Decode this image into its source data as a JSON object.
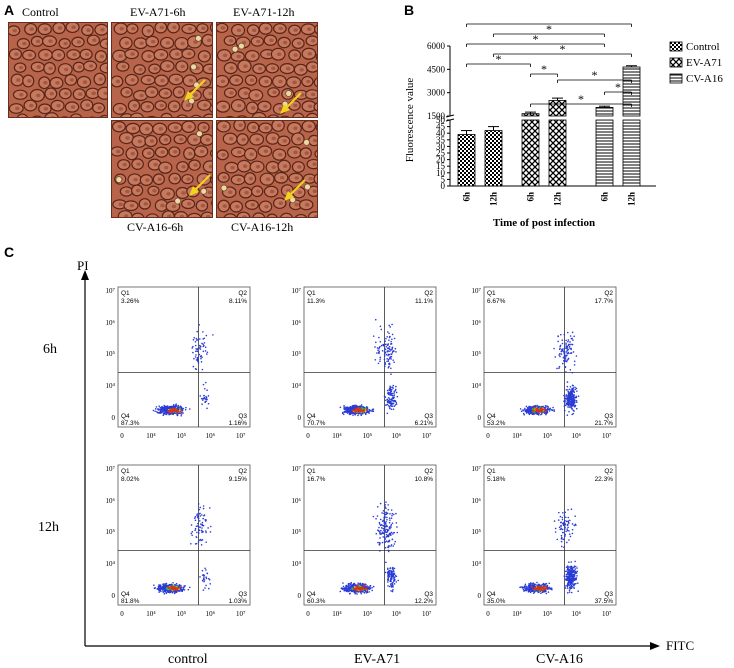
{
  "panel_a": {
    "letter": "A",
    "labels": {
      "control": "Control",
      "ev6": "EV-A71-6h",
      "ev12": "EV-A71-12h",
      "cv6": "CV-A16-6h",
      "cv12": "CV-A16-12h"
    },
    "colors": {
      "cell_bg": "#b7644a",
      "cell_edge": "#5a2418",
      "arrow": "#f3d21b"
    }
  },
  "panel_b": {
    "letter": "B",
    "sig_marker": "*"
  },
  "panel_c": {
    "letter": "C",
    "y_axis_label": "PI",
    "x_axis_label": "FITC",
    "row_labels": [
      "6h",
      "12h"
    ],
    "col_labels": [
      "control",
      "EV-A71",
      "CV-A16"
    ],
    "x_ticks": [
      "0",
      "10⁴",
      "10⁵",
      "10⁶",
      "10⁷"
    ],
    "y_ticks": [
      "0",
      "10⁴",
      "10⁵",
      "10⁶",
      "10⁷"
    ],
    "quadrant_names": [
      "Q1",
      "Q2",
      "Q3",
      "Q4"
    ],
    "plots": [
      {
        "q1": "3.26%",
        "q2": "8.11%",
        "q3": "1.16%",
        "q4": "87.3%"
      },
      {
        "q1": "11.3%",
        "q2": "11.1%",
        "q3": "6.21%",
        "q4": "70.7%"
      },
      {
        "q1": "6.67%",
        "q2": "17.7%",
        "q3": "21.7%",
        "q4": "53.2%"
      },
      {
        "q1": "8.02%",
        "q2": "9.15%",
        "q3": "1.03%",
        "q4": "81.8%"
      },
      {
        "q1": "16.7%",
        "q2": "10.8%",
        "q3": "12.2%",
        "q4": "60.3%"
      },
      {
        "q1": "5.18%",
        "q2": "22.3%",
        "q3": "37.5%",
        "q4": "35.0%"
      }
    ]
  },
  "chart_data": {
    "type": "bar",
    "title": "",
    "xlabel": "Time of post infection",
    "ylabel": "Fluorescence value",
    "y_axis_break": true,
    "ylim_lower": [
      0,
      50
    ],
    "ylim_upper": [
      1500,
      6000
    ],
    "y_ticks_lower": [
      0,
      5,
      10,
      15,
      20,
      25,
      30,
      35,
      40,
      45,
      50
    ],
    "y_ticks_upper": [
      1500,
      3000,
      4500,
      6000
    ],
    "categories": [
      "6h",
      "12h"
    ],
    "legend": [
      "Control",
      "EV-A71",
      "CV-A16"
    ],
    "legend_position": "right",
    "series": [
      {
        "name": "Control",
        "values": [
          39,
          42
        ],
        "errors": [
          3,
          3
        ]
      },
      {
        "name": "EV-A71",
        "values": [
          1650,
          2500
        ],
        "errors": [
          100,
          150
        ]
      },
      {
        "name": "CV-A16",
        "values": [
          2050,
          4650
        ],
        "errors": [
          80,
          80
        ]
      }
    ],
    "significance": [
      {
        "from": "Control-6h",
        "to": "CV-A16-12h",
        "label": "*"
      },
      {
        "from": "Control-12h",
        "to": "CV-A16-6h",
        "label": "*"
      },
      {
        "from": "Control-6h",
        "to": "CV-A16-6h",
        "label": "*"
      },
      {
        "from": "Control-12h",
        "to": "CV-A16-12h",
        "label": "*"
      },
      {
        "from": "Control-6h",
        "to": "EV-A71-6h",
        "label": "*"
      },
      {
        "from": "EV-A71-6h",
        "to": "EV-A71-12h",
        "label": "*"
      },
      {
        "from": "EV-A71-12h",
        "to": "CV-A16-12h",
        "label": "*"
      },
      {
        "from": "CV-A16-6h",
        "to": "CV-A16-12h",
        "label": "*"
      },
      {
        "from": "EV-A71-6h",
        "to": "CV-A16-12h",
        "label": "*"
      }
    ]
  }
}
